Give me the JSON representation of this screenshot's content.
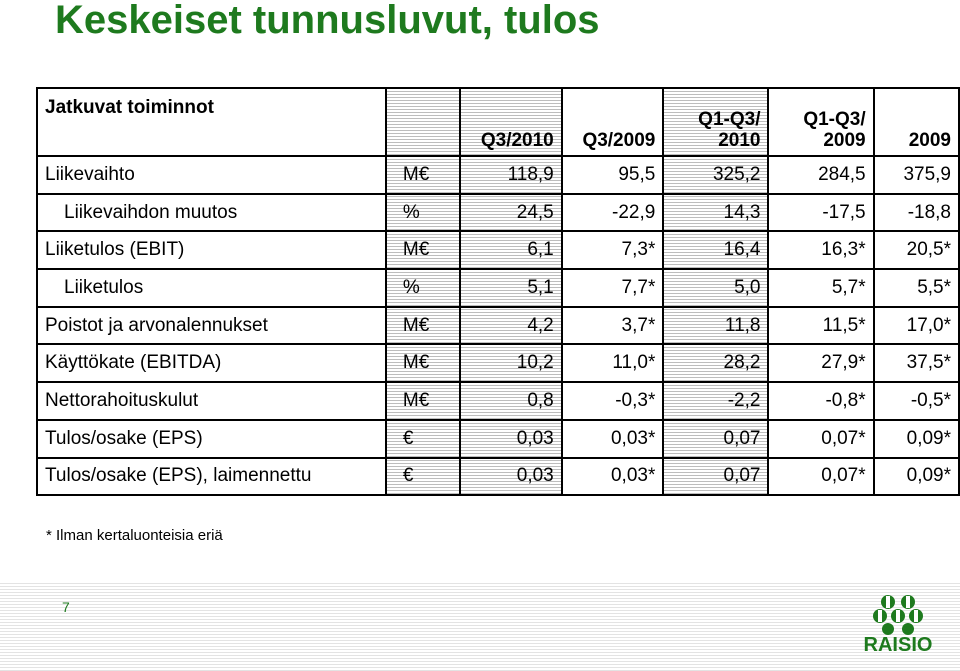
{
  "title": "Keskeiset tunnusluvut, tulos",
  "table": {
    "header": {
      "label": "Jatkuvat toiminnot",
      "c1": "Q3/2010",
      "c2": "Q3/2009",
      "c3_line1": "Q1-Q3/",
      "c3_line2": "2010",
      "c4_line1": "Q1-Q3/",
      "c4_line2": "2009",
      "c5": "2009"
    },
    "rows": [
      {
        "label": "Liikevaihto",
        "unit": "M€",
        "values": [
          "118,9",
          "95,5",
          "325,2",
          "284,5",
          "375,9"
        ]
      },
      {
        "label": "Liikevaihdon muutos",
        "unit": "%",
        "values": [
          "24,5",
          "-22,9",
          "14,3",
          "-17,5",
          "-18,8"
        ]
      },
      {
        "label": "Liiketulos (EBIT)",
        "unit": "M€",
        "values": [
          "6,1",
          "7,3*",
          "16,4",
          "16,3*",
          "20,5*"
        ]
      },
      {
        "label": "Liiketulos",
        "unit": "%",
        "values": [
          "5,1",
          "7,7*",
          "5,0",
          "5,7*",
          "5,5*"
        ]
      },
      {
        "label": "Poistot ja arvonalennukset",
        "unit": "M€",
        "values": [
          "4,2",
          "3,7*",
          "11,8",
          "11,5*",
          "17,0*"
        ]
      },
      {
        "label": "Käyttökate (EBITDA)",
        "unit": "M€",
        "values": [
          "10,2",
          "11,0*",
          "28,2",
          "27,9*",
          "37,5*"
        ]
      },
      {
        "label": "Nettorahoituskulut",
        "unit": "M€",
        "values": [
          "0,8",
          "-0,3*",
          "-2,2",
          "-0,8*",
          "-0,5*"
        ]
      },
      {
        "label": "Tulos/osake (EPS)",
        "unit": "€",
        "values": [
          "0,03",
          "0,03*",
          "0,07",
          "0,07*",
          "0,09*"
        ]
      },
      {
        "label": "Tulos/osake (EPS), laimennettu",
        "unit": "€",
        "values": [
          "0,03",
          "0,03*",
          "0,07",
          "0,07*",
          "0,09*"
        ]
      }
    ]
  },
  "footnote": "* Ilman kertaluonteisia eriä",
  "footer": {
    "page_number": "7",
    "logo_text": "RAISIO",
    "brand_color": "#1e7a1e"
  }
}
